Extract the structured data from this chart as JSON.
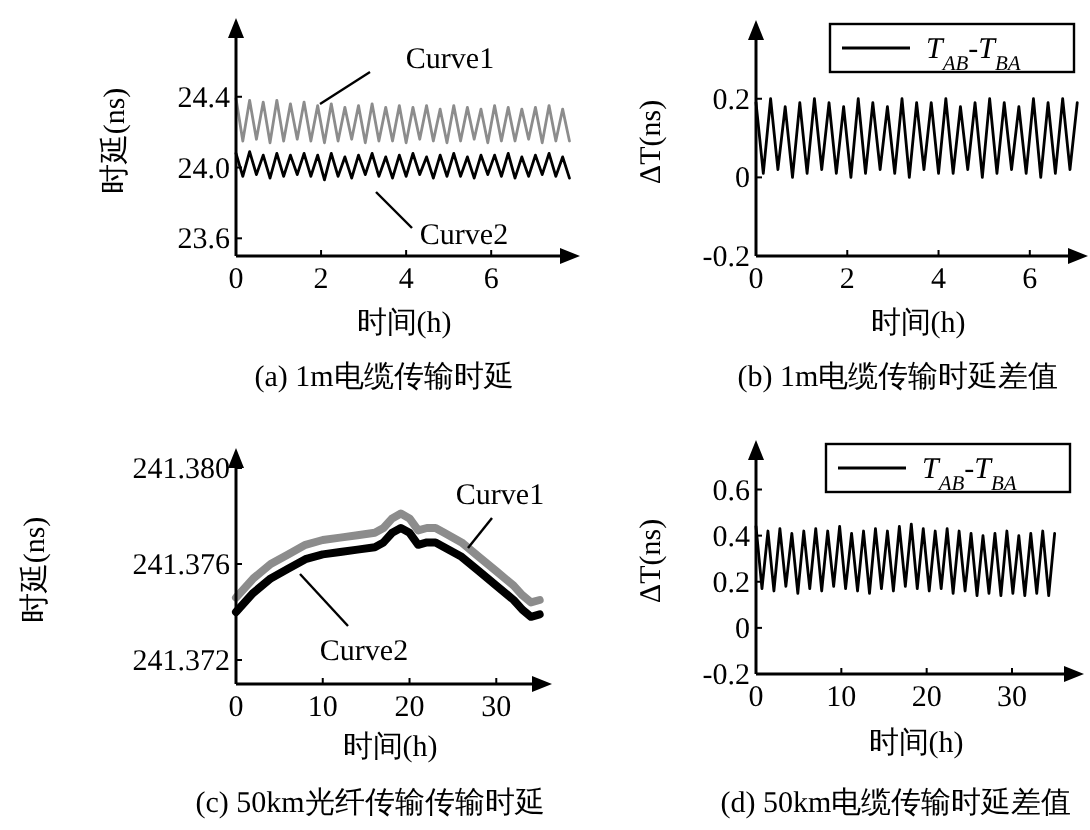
{
  "chart_data": [
    {
      "type": "line",
      "title": "(a) 1m电缆传输时延",
      "xlabel": "时间(h)",
      "ylabel": "时延(ns)",
      "xlim": [
        0,
        7.9
      ],
      "ylim": [
        23.5,
        24.8
      ],
      "xticks": [
        0,
        2,
        4,
        6
      ],
      "yticks": [
        {
          "value": 23.6,
          "label": "23.6"
        },
        {
          "value": 24,
          "label": "24.0"
        },
        {
          "value": 24.4,
          "label": "24.4"
        }
      ],
      "series": [
        {
          "name": "Curve1",
          "color": "#8c8c8c",
          "x": [
            0,
            0.16,
            0.32,
            0.48,
            0.64,
            0.8,
            0.96,
            1.12,
            1.28,
            1.44,
            1.6,
            1.76,
            1.92,
            2.08,
            2.24,
            2.4,
            2.56,
            2.72,
            2.88,
            3.04,
            3.2,
            3.36,
            3.52,
            3.68,
            3.84,
            4,
            4.16,
            4.32,
            4.48,
            4.64,
            4.8,
            4.96,
            5.12,
            5.28,
            5.44,
            5.6,
            5.76,
            5.92,
            6.08,
            6.24,
            6.4,
            6.56,
            6.72,
            6.88,
            7.04,
            7.2,
            7.36,
            7.52,
            7.68,
            7.84
          ],
          "values": [
            24.39,
            24.15,
            24.38,
            24.16,
            24.37,
            24.14,
            24.38,
            24.15,
            24.36,
            24.16,
            24.37,
            24.15,
            24.35,
            24.14,
            24.36,
            24.15,
            24.34,
            24.16,
            24.35,
            24.14,
            24.36,
            24.15,
            24.34,
            24.15,
            24.35,
            24.14,
            24.34,
            24.16,
            24.35,
            24.15,
            24.33,
            24.14,
            24.35,
            24.15,
            24.34,
            24.16,
            24.33,
            24.14,
            24.35,
            24.15,
            24.34,
            24.15,
            24.33,
            24.16,
            24.34,
            24.14,
            24.35,
            24.15,
            24.33,
            24.15
          ]
        },
        {
          "name": "Curve2",
          "color": "#000000",
          "x": [
            0,
            0.16,
            0.32,
            0.48,
            0.64,
            0.8,
            0.96,
            1.12,
            1.28,
            1.44,
            1.6,
            1.76,
            1.92,
            2.08,
            2.24,
            2.4,
            2.56,
            2.72,
            2.88,
            3.04,
            3.2,
            3.36,
            3.52,
            3.68,
            3.84,
            4,
            4.16,
            4.32,
            4.48,
            4.64,
            4.8,
            4.96,
            5.12,
            5.28,
            5.44,
            5.6,
            5.76,
            5.92,
            6.08,
            6.24,
            6.4,
            6.56,
            6.72,
            6.88,
            7.04,
            7.2,
            7.36,
            7.52,
            7.68,
            7.84
          ],
          "values": [
            24.08,
            23.95,
            24.09,
            23.96,
            24.07,
            23.94,
            24.08,
            23.95,
            24.07,
            23.96,
            24.08,
            23.95,
            24.07,
            23.93,
            24.08,
            23.95,
            24.06,
            23.94,
            24.07,
            23.96,
            24.08,
            23.95,
            24.06,
            23.94,
            24.07,
            23.95,
            24.08,
            23.96,
            24.06,
            23.94,
            24.07,
            23.95,
            24.08,
            23.95,
            24.06,
            23.94,
            24.07,
            23.96,
            24.07,
            23.95,
            24.08,
            23.94,
            24.06,
            23.95,
            24.07,
            23.96,
            24.08,
            23.95,
            24.06,
            23.94
          ]
        }
      ]
    },
    {
      "type": "line",
      "title": "(b) 1m电缆传输时延差值",
      "xlabel": "时间(h)",
      "ylabel": "ΔT(ns)",
      "xlim": [
        0,
        7.1
      ],
      "ylim": [
        -0.2,
        0.38
      ],
      "xticks": [
        0,
        2,
        4,
        6
      ],
      "yticks": [
        -0.2,
        0,
        0.2
      ],
      "legend": "top right",
      "series": [
        {
          "name": "T$_{AB}$-T$_{BA}$",
          "color": "#000000",
          "x": [
            0,
            0.16,
            0.32,
            0.48,
            0.64,
            0.8,
            0.96,
            1.12,
            1.28,
            1.44,
            1.6,
            1.76,
            1.92,
            2.08,
            2.24,
            2.4,
            2.56,
            2.72,
            2.88,
            3.04,
            3.2,
            3.36,
            3.52,
            3.68,
            3.84,
            4,
            4.16,
            4.32,
            4.48,
            4.64,
            4.8,
            4.96,
            5.12,
            5.28,
            5.44,
            5.6,
            5.76,
            5.92,
            6.08,
            6.24,
            6.4,
            6.56,
            6.72,
            6.88,
            7.04
          ],
          "values": [
            0.19,
            0.01,
            0.2,
            0.02,
            0.18,
            0,
            0.19,
            0.01,
            0.2,
            0.02,
            0.19,
            0.01,
            0.18,
            0,
            0.2,
            0.01,
            0.19,
            0.02,
            0.18,
            0.01,
            0.2,
            0,
            0.19,
            0.02,
            0.19,
            0.01,
            0.2,
            0.01,
            0.18,
            0.02,
            0.19,
            0,
            0.2,
            0.01,
            0.19,
            0.02,
            0.18,
            0.01,
            0.2,
            0,
            0.19,
            0.01,
            0.2,
            0.02,
            0.19
          ]
        }
      ]
    },
    {
      "type": "line",
      "title": "(c) 50km光纤传输传输时延",
      "xlabel": "时间(h)",
      "ylabel": "时延(ns)",
      "xlim": [
        0,
        35.5
      ],
      "ylim": [
        241.371,
        241.3805
      ],
      "xticks": [
        0,
        10,
        20,
        30
      ],
      "yticks": [
        {
          "value": 241.372,
          "label": "241.372"
        },
        {
          "value": 241.376,
          "label": "241.376"
        },
        {
          "value": 241.38,
          "label": "241.380"
        }
      ],
      "series": [
        {
          "name": "Curve1",
          "color": "#8c8c8c",
          "x": [
            0,
            2,
            4,
            6,
            8,
            10,
            12,
            14,
            16,
            17,
            18,
            19,
            20,
            21,
            22,
            23,
            24,
            26,
            28,
            30,
            32,
            33,
            34,
            35
          ],
          "values": [
            241.3746,
            241.3754,
            241.376,
            241.3764,
            241.3768,
            241.377,
            241.3771,
            241.3772,
            241.3773,
            241.3775,
            241.3779,
            241.3781,
            241.3779,
            241.3774,
            241.3775,
            241.3775,
            241.3773,
            241.3769,
            241.3763,
            241.3757,
            241.3751,
            241.3747,
            241.3744,
            241.3745
          ]
        },
        {
          "name": "Curve2",
          "color": "#000000",
          "x": [
            0,
            2,
            4,
            6,
            8,
            10,
            12,
            14,
            16,
            17,
            18,
            19,
            20,
            21,
            22,
            23,
            24,
            26,
            28,
            30,
            32,
            33,
            34,
            35
          ],
          "values": [
            241.374,
            241.3748,
            241.3754,
            241.3758,
            241.3762,
            241.3764,
            241.3765,
            241.3766,
            241.3767,
            241.3769,
            241.3773,
            241.3775,
            241.3773,
            241.3768,
            241.3769,
            241.3769,
            241.3767,
            241.3763,
            241.3757,
            241.3751,
            241.3745,
            241.3741,
            241.3738,
            241.3739
          ]
        }
      ]
    },
    {
      "type": "line",
      "title": "(d) 50km电缆传输时延差值",
      "xlabel": "时间(h)",
      "ylabel": "ΔT(ns)",
      "xlim": [
        0,
        37.5
      ],
      "ylim": [
        -0.2,
        0.78
      ],
      "xticks": [
        0,
        10,
        20,
        30
      ],
      "yticks": [
        -0.2,
        0,
        0.2,
        0.4,
        0.6
      ],
      "legend": "top right",
      "series": [
        {
          "name": "T$_{AB}$-T$_{BA}$",
          "color": "#000000",
          "x": [
            0,
            0.7,
            1.4,
            2.1,
            2.8,
            3.5,
            4.2,
            4.9,
            5.6,
            6.3,
            7,
            7.7,
            8.4,
            9.1,
            9.8,
            10.5,
            11.2,
            11.9,
            12.6,
            13.3,
            14,
            14.7,
            15.4,
            16.1,
            16.8,
            17.5,
            18.2,
            18.9,
            19.6,
            20.3,
            21,
            21.7,
            22.4,
            23.1,
            23.8,
            24.5,
            25.2,
            25.9,
            26.6,
            27.3,
            28,
            28.7,
            29.4,
            30.1,
            30.8,
            31.5,
            32.2,
            32.9,
            33.6,
            34.3,
            35
          ],
          "values": [
            0.44,
            0.17,
            0.42,
            0.16,
            0.43,
            0.18,
            0.41,
            0.15,
            0.42,
            0.17,
            0.43,
            0.16,
            0.42,
            0.18,
            0.44,
            0.17,
            0.41,
            0.16,
            0.42,
            0.15,
            0.43,
            0.17,
            0.42,
            0.16,
            0.44,
            0.18,
            0.45,
            0.17,
            0.43,
            0.16,
            0.42,
            0.17,
            0.43,
            0.15,
            0.42,
            0.16,
            0.41,
            0.14,
            0.4,
            0.15,
            0.41,
            0.14,
            0.42,
            0.15,
            0.4,
            0.14,
            0.41,
            0.15,
            0.42,
            0.14,
            0.41
          ]
        }
      ]
    }
  ]
}
